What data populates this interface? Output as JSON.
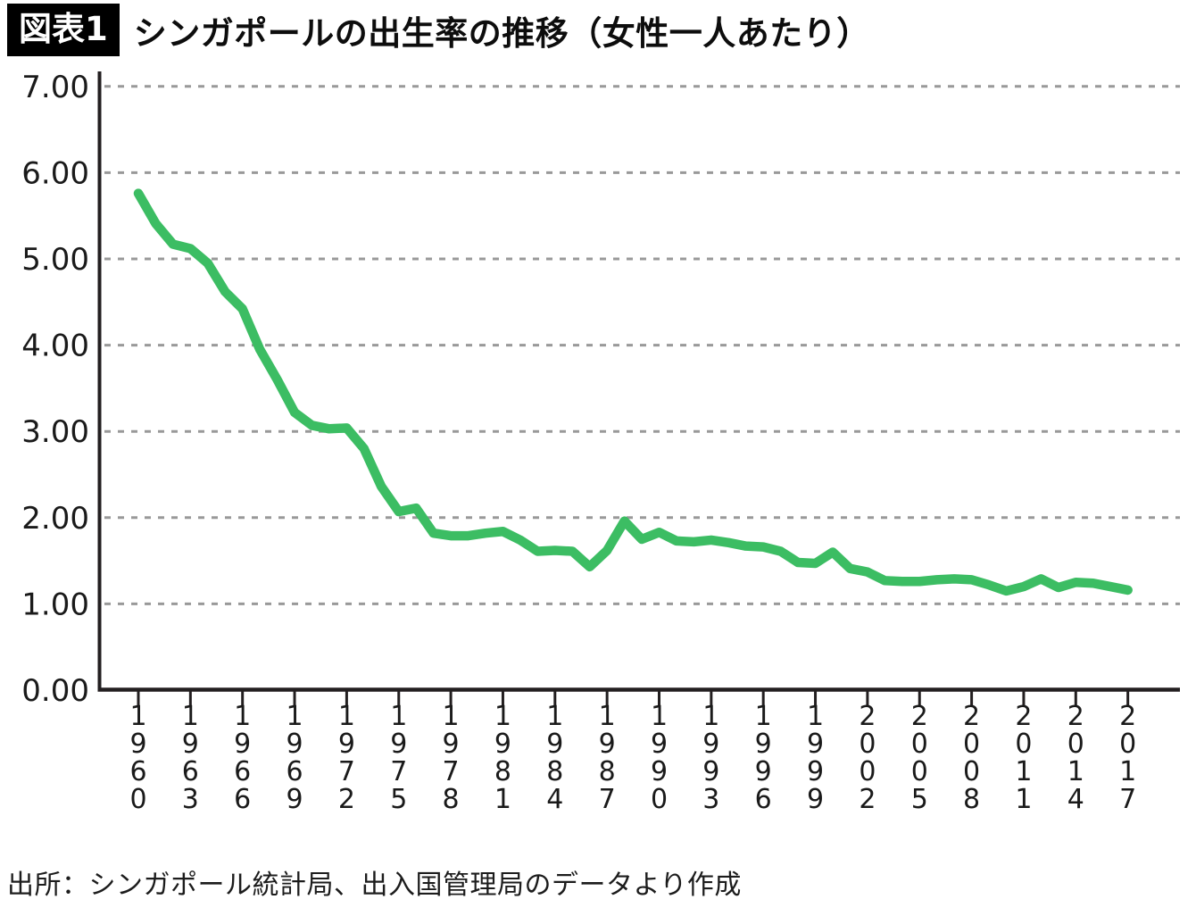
{
  "header": {
    "badge": "図表1",
    "title": "シンガポールの出生率の推移（女性一人あたり）"
  },
  "source_note": "出所：シンガポール統計局、出入国管理局のデータより作成",
  "chart_data": {
    "type": "line",
    "title": "シンガポールの出生率の推移（女性一人あたり）",
    "xlabel": "",
    "ylabel": "",
    "ylim": [
      0,
      7
    ],
    "grid": "horizontal-dashed",
    "legend": "none",
    "line_color": "#3cbd63",
    "grid_color": "#999999",
    "axis_color": "#231f20",
    "label_color": "#1a1a1a",
    "yticks": [
      "0.00",
      "1.00",
      "2.00",
      "3.00",
      "4.00",
      "5.00",
      "6.00",
      "7.00"
    ],
    "xticks": [
      "1960",
      "1963",
      "1966",
      "1969",
      "1972",
      "1975",
      "1978",
      "1981",
      "1984",
      "1987",
      "1990",
      "1993",
      "1996",
      "1999",
      "2002",
      "2005",
      "2008",
      "2011",
      "2014",
      "2017"
    ],
    "x": [
      1960,
      1961,
      1962,
      1963,
      1964,
      1965,
      1966,
      1967,
      1968,
      1969,
      1970,
      1971,
      1972,
      1973,
      1974,
      1975,
      1976,
      1977,
      1978,
      1979,
      1980,
      1981,
      1982,
      1983,
      1984,
      1985,
      1986,
      1987,
      1988,
      1989,
      1990,
      1991,
      1992,
      1993,
      1994,
      1995,
      1996,
      1997,
      1998,
      1999,
      2000,
      2001,
      2002,
      2003,
      2004,
      2005,
      2006,
      2007,
      2008,
      2009,
      2010,
      2011,
      2012,
      2013,
      2014,
      2015,
      2016,
      2017
    ],
    "values": [
      5.76,
      5.41,
      5.17,
      5.12,
      4.95,
      4.62,
      4.42,
      3.95,
      3.6,
      3.22,
      3.07,
      3.03,
      3.04,
      2.8,
      2.36,
      2.07,
      2.11,
      1.82,
      1.79,
      1.79,
      1.82,
      1.84,
      1.74,
      1.61,
      1.62,
      1.61,
      1.43,
      1.62,
      1.96,
      1.75,
      1.83,
      1.73,
      1.72,
      1.74,
      1.71,
      1.67,
      1.66,
      1.61,
      1.48,
      1.47,
      1.6,
      1.41,
      1.37,
      1.27,
      1.26,
      1.26,
      1.28,
      1.29,
      1.28,
      1.22,
      1.15,
      1.2,
      1.29,
      1.19,
      1.25,
      1.24,
      1.2,
      1.16
    ]
  }
}
